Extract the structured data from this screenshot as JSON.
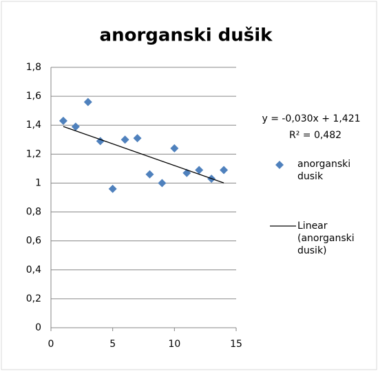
{
  "chart_data": {
    "type": "scatter",
    "title": "anorganski dušik",
    "x": [
      1,
      2,
      3,
      4,
      5,
      6,
      7,
      8,
      9,
      10,
      11,
      12,
      13,
      14
    ],
    "series": [
      {
        "name": "anorganski dusik",
        "color": "#4f81bd",
        "values": [
          1.43,
          1.39,
          1.56,
          1.29,
          0.96,
          1.3,
          1.31,
          1.06,
          1.0,
          1.24,
          1.07,
          1.09,
          1.03,
          1.09
        ]
      }
    ],
    "trendline": {
      "name": "Linear (anorganski dusik)",
      "slope": -0.03,
      "intercept": 1.421,
      "equation": "y = -0,030x + 1,421",
      "r2_label": "R² = 0,482",
      "color": "#000000"
    },
    "xlim": [
      0,
      15
    ],
    "xticks": [
      0,
      5,
      10,
      15
    ],
    "ylim": [
      0,
      1.8
    ],
    "yticks": [
      0,
      {
        "value": 0.2,
        "label": "0,2"
      },
      {
        "value": 0.4,
        "label": "0,4"
      },
      {
        "value": 0.6,
        "label": "0,6"
      },
      {
        "value": 0.8,
        "label": "0,8"
      },
      1,
      {
        "value": 1.2,
        "label": "1,2"
      },
      {
        "value": 1.4,
        "label": "1,4"
      },
      {
        "value": 1.6,
        "label": "1,6"
      },
      {
        "value": 1.8,
        "label": "1,8"
      }
    ],
    "grid": true
  }
}
